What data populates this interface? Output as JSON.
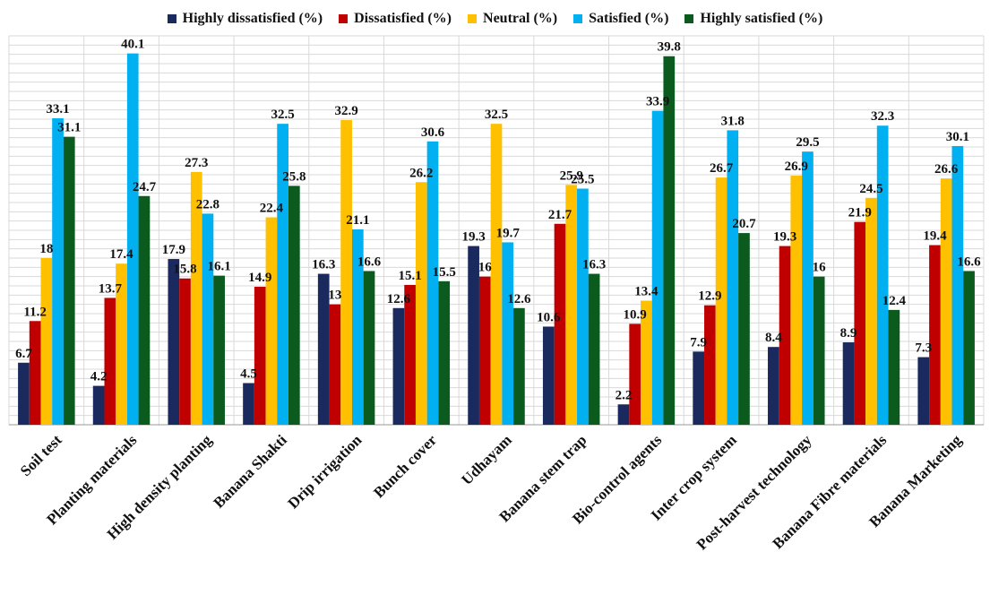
{
  "chart_data": {
    "type": "bar",
    "title": "",
    "xlabel": "",
    "ylabel": "",
    "ylim": [
      0,
      42
    ],
    "grid": true,
    "legend_position": "top",
    "categories": [
      "Soil test",
      "Planting materials",
      "High density planting",
      "Banana Shakti",
      "Drip irrigation",
      "Bunch cover",
      "Udhayam",
      "Banana stem trap",
      "Bio-control agents",
      "Inter crop system",
      "Post-harvest technology",
      "Banana Fibre materials",
      "Banana Marketing"
    ],
    "series": [
      {
        "name": "Highly dissatisfied (%)",
        "color": "#1a2a5e",
        "values": [
          6.7,
          4.2,
          17.9,
          4.5,
          16.3,
          12.6,
          19.3,
          10.6,
          2.2,
          7.9,
          8.4,
          8.9,
          7.3
        ]
      },
      {
        "name": "Dissatisfied (%)",
        "color": "#c00000",
        "values": [
          11.2,
          13.7,
          15.8,
          14.9,
          13,
          15.1,
          16,
          21.7,
          10.9,
          12.9,
          19.3,
          21.9,
          19.4
        ]
      },
      {
        "name": "Neutral (%)",
        "color": "#ffc000",
        "values": [
          18,
          17.4,
          27.3,
          22.4,
          32.9,
          26.2,
          32.5,
          25.9,
          13.4,
          26.7,
          26.9,
          24.5,
          26.6
        ]
      },
      {
        "name": "Satisfied (%)",
        "color": "#00b0f0",
        "values": [
          33.1,
          40.1,
          22.8,
          32.5,
          21.1,
          30.6,
          19.7,
          25.5,
          33.9,
          31.8,
          29.5,
          32.3,
          30.1
        ]
      },
      {
        "name": "Highly satisfied (%)",
        "color": "#0b5a1e",
        "values": [
          31.1,
          24.7,
          16.1,
          25.8,
          16.6,
          15.5,
          12.6,
          16.3,
          39.8,
          20.7,
          16,
          12.4,
          16.6
        ]
      }
    ]
  }
}
